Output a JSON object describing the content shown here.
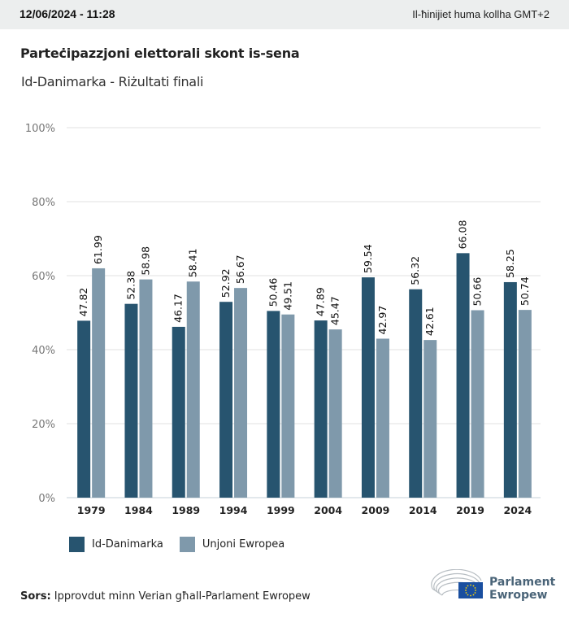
{
  "header": {
    "datetime": "12/06/2024 - 11:28",
    "timezone_note": "Il-ħinijiet huma kollha GMT+2"
  },
  "title": "Parteċipazzjoni elettorali skont is-sena",
  "subtitle": "Id-Danimarka - Riżultati finali",
  "colors": {
    "series1": "#27546f",
    "series2": "#7f99ab",
    "grid": "#e2e2e2",
    "axis": "#c4d0d8"
  },
  "chart_data": {
    "type": "bar",
    "title": "Parteċipazzjoni elettorali skont is-sena",
    "subtitle": "Id-Danimarka - Riżultati finali",
    "xlabel": "",
    "ylabel": "",
    "ylim": [
      0,
      100
    ],
    "yticks": [
      0,
      20,
      40,
      60,
      80,
      100
    ],
    "ytick_labels": [
      "0%",
      "20%",
      "40%",
      "60%",
      "80%",
      "100%"
    ],
    "grid": true,
    "legend_position": "bottom-left",
    "categories": [
      "1979",
      "1984",
      "1989",
      "1994",
      "1999",
      "2004",
      "2009",
      "2014",
      "2019",
      "2024"
    ],
    "series": [
      {
        "name": "Id-Danimarka",
        "values": [
          47.82,
          52.38,
          46.17,
          52.92,
          50.46,
          47.89,
          59.54,
          56.32,
          66.08,
          58.25
        ]
      },
      {
        "name": "Unjoni Ewropea",
        "values": [
          61.99,
          58.98,
          58.41,
          56.67,
          49.51,
          45.47,
          42.97,
          42.61,
          50.66,
          50.74
        ]
      }
    ]
  },
  "legend": {
    "items": [
      {
        "label": "Id-Danimarka"
      },
      {
        "label": "Unjoni Ewropea"
      }
    ]
  },
  "footer": {
    "source_label": "Sors:",
    "source_text": " Ipprovdut minn Verian għall-Parlament Ewropew",
    "logo_line1": "Parlament",
    "logo_line2": "Ewropew"
  }
}
